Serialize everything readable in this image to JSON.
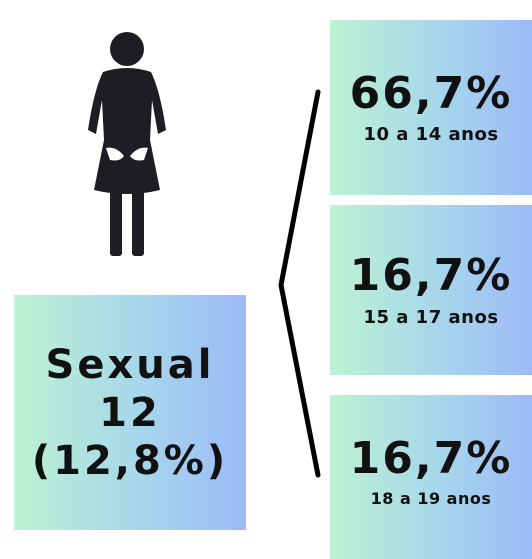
{
  "summary": {
    "title": "Sexual",
    "count": "12",
    "share": "(12,8%)"
  },
  "groups": [
    {
      "percent": "66,7%",
      "age": "10 a 14 anos"
    },
    {
      "percent": "16,7%",
      "age": "15 a 17 anos"
    },
    {
      "percent": "16,7%",
      "age": "18 a 19 anos"
    }
  ]
}
